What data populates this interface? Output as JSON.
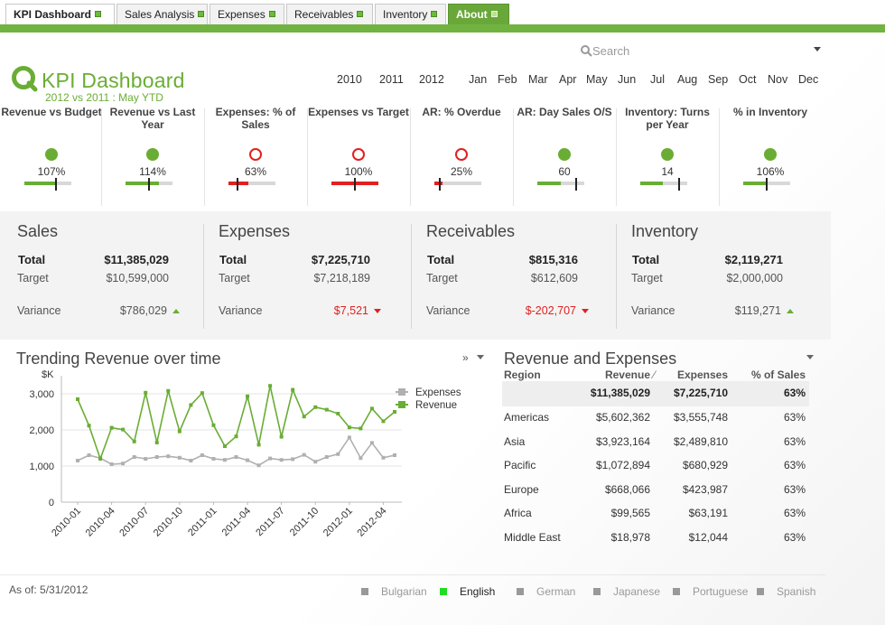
{
  "tabs": [
    {
      "label": "KPI Dashboard",
      "active": true
    },
    {
      "label": "Sales Analysis"
    },
    {
      "label": "Expenses"
    },
    {
      "label": "Receivables"
    },
    {
      "label": "Inventory"
    },
    {
      "label": "About"
    }
  ],
  "colors": {
    "accent": "#71b340",
    "good": "#6aad34",
    "bad": "#e02020"
  },
  "search": {
    "placeholder": "Search"
  },
  "header": {
    "title": "KPI Dashboard",
    "subtitle": "2012 vs 2011 : May YTD"
  },
  "years": [
    "2010",
    "2011",
    "2012"
  ],
  "months": [
    "Jan",
    "Feb",
    "Mar",
    "Apr",
    "May",
    "Jun",
    "Jul",
    "Aug",
    "Sep",
    "Oct",
    "Nov",
    "Dec"
  ],
  "kpis": [
    {
      "label": "Revenue vs Budget",
      "value": "107%",
      "status": "good",
      "fill": 0.68,
      "target": 0.67
    },
    {
      "label": "Revenue vs Last Year",
      "value": "114%",
      "status": "good",
      "fill": 0.72,
      "target": 0.5
    },
    {
      "label": "Expenses: % of Sales",
      "value": "63%",
      "status": "bad",
      "fill": 0.42,
      "target": 0.2
    },
    {
      "label": "Expenses vs Target",
      "value": "100%",
      "status": "bad",
      "fill": 1.0,
      "target": 0.5
    },
    {
      "label": "AR: % Overdue",
      "value": "25%",
      "status": "bad",
      "fill": 0.17,
      "target": 0.12
    },
    {
      "label": "AR: Day Sales O/S",
      "value": "60",
      "status": "good",
      "fill": 0.5,
      "target": 0.82
    },
    {
      "label": "Inventory: Turns per Year",
      "value": "14",
      "status": "good",
      "fill": 0.48,
      "target": 0.82
    },
    {
      "label": "% in Inventory",
      "value": "106%",
      "status": "good",
      "fill": 0.52,
      "target": 0.5
    }
  ],
  "summary": [
    {
      "name": "Sales",
      "total_label": "Total",
      "total": "$11,385,029",
      "target_label": "Target",
      "target": "$10,599,000",
      "variance_label": "Variance",
      "variance": "$786,029",
      "direction": "up"
    },
    {
      "name": "Expenses",
      "total_label": "Total",
      "total": "$7,225,710",
      "target_label": "Target",
      "target": "$7,218,189",
      "variance_label": "Variance",
      "variance": "$7,521",
      "direction": "down"
    },
    {
      "name": "Receivables",
      "total_label": "Total",
      "total": "$815,316",
      "target_label": "Target",
      "target": "$612,609",
      "variance_label": "Variance",
      "variance": "$-202,707",
      "direction": "down"
    },
    {
      "name": "Inventory",
      "total_label": "Total",
      "total": "$2,119,271",
      "target_label": "Target",
      "target": "$2,000,000",
      "variance_label": "Variance",
      "variance": "$119,271",
      "direction": "up"
    }
  ],
  "trend": {
    "title": "Trending Revenue over time",
    "controls": "»"
  },
  "chart_data": {
    "type": "line",
    "ylabel": "$K",
    "ylim": [
      0,
      3500
    ],
    "yticks": [
      0,
      1000,
      2000,
      3000
    ],
    "ytick_labels": [
      "0",
      "1,000",
      "2,000",
      "3,000"
    ],
    "xtick_labels": [
      "2010-01",
      "2010-04",
      "2010-07",
      "2010-10",
      "2011-01",
      "2011-04",
      "2011-07",
      "2011-10",
      "2012-01",
      "2012-04"
    ],
    "grid": true,
    "legend": "top-right",
    "series": [
      {
        "name": "Expenses",
        "color": "#b0b0b0",
        "values": [
          1150,
          1300,
          1220,
          1050,
          1070,
          1250,
          1200,
          1250,
          1270,
          1230,
          1150,
          1300,
          1200,
          1170,
          1250,
          1160,
          1020,
          1210,
          1170,
          1190,
          1310,
          1120,
          1250,
          1330,
          1790,
          1220,
          1640,
          1230,
          1300
        ]
      },
      {
        "name": "Revenue",
        "color": "#6aad34",
        "values": [
          2850,
          2120,
          1200,
          2060,
          2010,
          1680,
          3030,
          1650,
          3080,
          1960,
          2690,
          3020,
          2130,
          1550,
          1820,
          2930,
          1590,
          3220,
          1810,
          3110,
          2370,
          2630,
          2560,
          2450,
          2070,
          2040,
          2590,
          2240,
          2500
        ]
      }
    ]
  },
  "rev_table": {
    "title": "Revenue and Expenses",
    "headers": [
      "Region",
      "Revenue",
      "Expenses",
      "% of Sales"
    ],
    "sort_glyph": "⁄",
    "totals": [
      "$11,385,029",
      "$7,225,710",
      "63%"
    ],
    "rows": [
      [
        "Americas",
        "$5,602,362",
        "$3,555,748",
        "63%"
      ],
      [
        "Asia",
        "$3,923,164",
        "$2,489,810",
        "63%"
      ],
      [
        "Pacific",
        "$1,072,894",
        "$680,929",
        "63%"
      ],
      [
        "Europe",
        "$668,066",
        "$423,987",
        "63%"
      ],
      [
        "Africa",
        "$99,565",
        "$63,191",
        "63%"
      ],
      [
        "Middle East",
        "$18,978",
        "$12,044",
        "63%"
      ]
    ]
  },
  "footer": {
    "as_of": "As of: 5/31/2012",
    "languages": [
      {
        "label": "Bulgarian"
      },
      {
        "label": "English",
        "active": true
      },
      {
        "label": "German"
      },
      {
        "label": "Japanese"
      },
      {
        "label": "Portuguese"
      },
      {
        "label": "Spanish"
      }
    ]
  }
}
